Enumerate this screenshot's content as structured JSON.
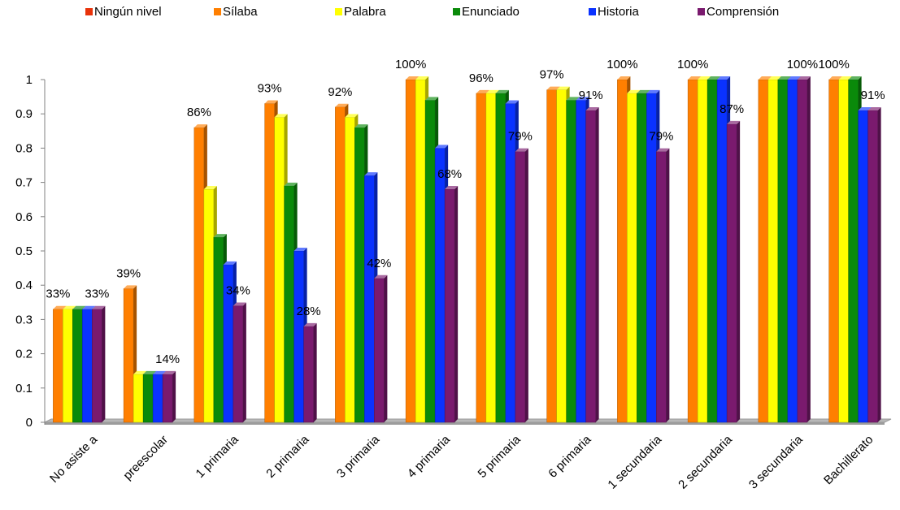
{
  "chart_data": {
    "type": "bar",
    "title": "",
    "xlabel": "",
    "ylabel": "",
    "ylim": [
      0,
      1
    ],
    "yticks": [
      "0",
      "0.1",
      "0.2",
      "0.3",
      "0.4",
      "0.5",
      "0.6",
      "0.7",
      "0.8",
      "0.9",
      "1"
    ],
    "legend_position": "top",
    "grid": false,
    "categories": [
      "No asiste a",
      "preescolar",
      "1 primaria",
      "2 primaria",
      "3 primaria",
      "4 primaria",
      "5 primaria",
      "6 primaria",
      "1 secundaria",
      "2 secundaria",
      "3 secundaria",
      "Bachillerato"
    ],
    "series": [
      {
        "name": "Ningún nivel",
        "color": "#e8320a",
        "values": [
          0,
          0,
          0,
          0,
          0,
          0,
          0,
          0,
          0,
          0,
          0,
          0
        ]
      },
      {
        "name": "Sílaba",
        "color": "#ff7f00",
        "values": [
          0.33,
          0.39,
          0.86,
          0.93,
          0.92,
          1.0,
          0.96,
          0.97,
          1.0,
          1.0,
          1.0,
          1.0
        ]
      },
      {
        "name": "Palabra",
        "color": "#ffff00",
        "values": [
          0.33,
          0.14,
          0.68,
          0.89,
          0.89,
          1.0,
          0.96,
          0.97,
          0.96,
          1.0,
          1.0,
          1.0
        ]
      },
      {
        "name": "Enunciado",
        "color": "#0a8a0a",
        "values": [
          0.33,
          0.14,
          0.54,
          0.69,
          0.86,
          0.94,
          0.96,
          0.94,
          0.96,
          1.0,
          1.0,
          1.0
        ]
      },
      {
        "name": "Historia",
        "color": "#0a32ff",
        "values": [
          0.33,
          0.14,
          0.46,
          0.5,
          0.72,
          0.8,
          0.93,
          0.94,
          0.96,
          1.0,
          1.0,
          0.91
        ]
      },
      {
        "name": "Comprensión",
        "color": "#7a1a6e",
        "values": [
          0.33,
          0.14,
          0.34,
          0.28,
          0.42,
          0.68,
          0.79,
          0.91,
          0.79,
          0.87,
          1.0,
          0.91
        ]
      }
    ],
    "data_labels": [
      {
        "category": 0,
        "series": "Sílaba",
        "text": "33%"
      },
      {
        "category": 0,
        "series": "Comprensión",
        "text": "33%"
      },
      {
        "category": 1,
        "series": "Sílaba",
        "text": "39%"
      },
      {
        "category": 1,
        "series": "Comprensión",
        "text": "14%"
      },
      {
        "category": 2,
        "series": "Sílaba",
        "text": "86%"
      },
      {
        "category": 2,
        "series": "Comprensión",
        "text": "34%"
      },
      {
        "category": 3,
        "series": "Sílaba",
        "text": "93%"
      },
      {
        "category": 3,
        "series": "Comprensión",
        "text": "28%"
      },
      {
        "category": 4,
        "series": "Sílaba",
        "text": "92%"
      },
      {
        "category": 4,
        "series": "Comprensión",
        "text": "42%"
      },
      {
        "category": 5,
        "series": "Sílaba",
        "text": "100%"
      },
      {
        "category": 5,
        "series": "Comprensión",
        "text": "68%"
      },
      {
        "category": 6,
        "series": "Sílaba",
        "text": "96%"
      },
      {
        "category": 6,
        "series": "Comprensión",
        "text": "79%"
      },
      {
        "category": 7,
        "series": "Sílaba",
        "text": "97%"
      },
      {
        "category": 7,
        "series": "Comprensión",
        "text": "91%"
      },
      {
        "category": 8,
        "series": "Sílaba",
        "text": "100%"
      },
      {
        "category": 8,
        "series": "Comprensión",
        "text": "79%"
      },
      {
        "category": 9,
        "series": "Sílaba",
        "text": "100%"
      },
      {
        "category": 9,
        "series": "Comprensión",
        "text": "87%"
      },
      {
        "category": 10,
        "series": "Comprensión",
        "text": "100%"
      },
      {
        "category": 11,
        "series": "Sílaba",
        "text": "100%"
      },
      {
        "category": 11,
        "series": "Comprensión",
        "text": "91%"
      }
    ]
  }
}
